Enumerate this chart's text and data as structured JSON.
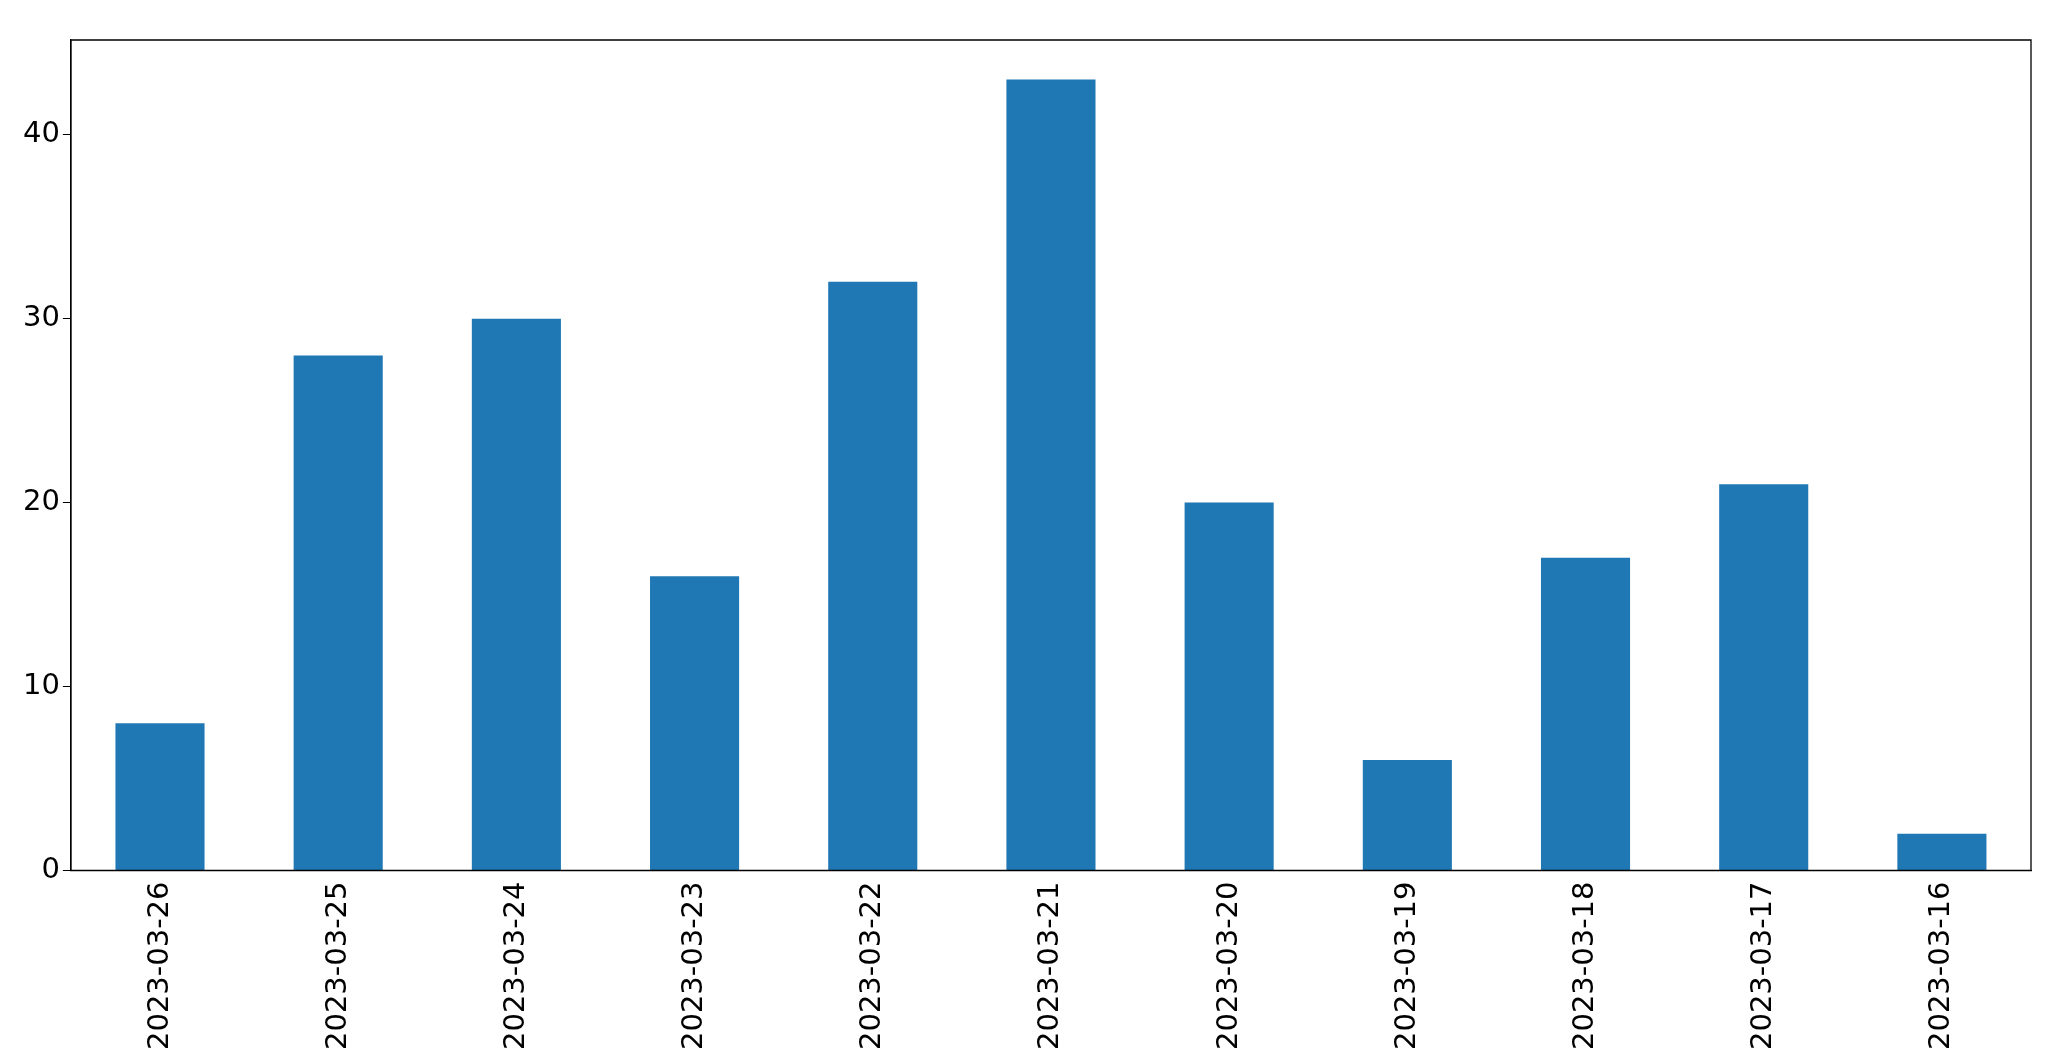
{
  "chart_data": {
    "type": "bar",
    "categories": [
      "2023-03-26",
      "2023-03-25",
      "2023-03-24",
      "2023-03-23",
      "2023-03-22",
      "2023-03-21",
      "2023-03-20",
      "2023-03-19",
      "2023-03-18",
      "2023-03-17",
      "2023-03-16"
    ],
    "values": [
      8,
      28,
      30,
      16,
      32,
      43,
      20,
      6,
      17,
      21,
      2
    ],
    "color": "#1f77b4",
    "ylim": [
      0,
      45.15
    ],
    "yticks": [
      0,
      10,
      20,
      30,
      40
    ],
    "grid": false,
    "legend": false
  }
}
